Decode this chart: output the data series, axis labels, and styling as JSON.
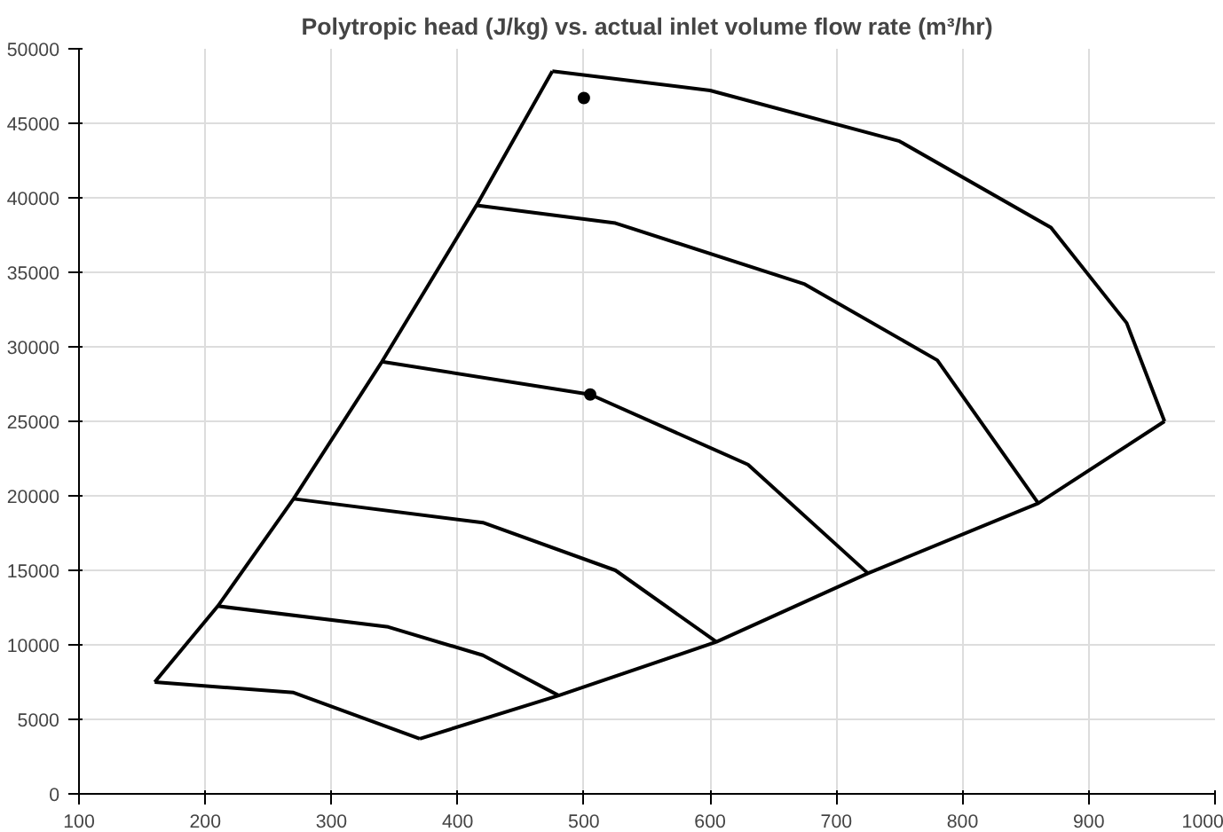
{
  "chart_data": {
    "type": "line",
    "title": "Polytropic head (J/kg) vs. actual inlet volume flow rate (m³/hr)",
    "xlim": [
      100,
      1000
    ],
    "xticks": [
      100,
      200,
      300,
      400,
      500,
      600,
      700,
      800,
      900,
      1000
    ],
    "ylim": [
      0,
      50000
    ],
    "yticks": [
      0,
      5000,
      10000,
      15000,
      20000,
      25000,
      30000,
      35000,
      40000,
      45000,
      50000
    ],
    "grid": true,
    "marker": "none",
    "line_style": "solid",
    "series": [
      {
        "color": "#000000",
        "x": [
          160,
          270,
          370
        ],
        "values": [
          7500,
          6800,
          3700
        ]
      },
      {
        "color": "#000000",
        "x": [
          210,
          345,
          420,
          480
        ],
        "values": [
          12600,
          11200,
          9300,
          6600
        ]
      },
      {
        "color": "#000000",
        "x": [
          270,
          420,
          525,
          605
        ],
        "values": [
          19800,
          18200,
          15000,
          10200
        ]
      },
      {
        "color": "#000000",
        "x": [
          340,
          505,
          630,
          725
        ],
        "values": [
          29000,
          26800,
          22100,
          14800
        ]
      },
      {
        "color": "#000000",
        "x": [
          415,
          525,
          675,
          780,
          860
        ],
        "values": [
          39500,
          38300,
          34200,
          29100,
          19500
        ]
      },
      {
        "color": "#000000",
        "x": [
          475,
          600,
          750,
          870,
          930,
          960
        ],
        "values": [
          48500,
          47200,
          43800,
          38000,
          31600,
          25000
        ]
      },
      {
        "color": "#000000",
        "x": [
          160,
          210,
          270,
          340,
          415,
          475
        ],
        "values": [
          7500,
          12600,
          19800,
          29000,
          39500,
          48500
        ]
      },
      {
        "color": "#000000",
        "x": [
          370,
          480,
          605,
          725,
          860,
          960
        ],
        "values": [
          3700,
          6600,
          10200,
          14800,
          19500,
          25000
        ]
      },
      {
        "type": "scatter",
        "marker": "circle",
        "color": "#000000",
        "x": [
          500,
          505
        ],
        "values": [
          46700,
          26800
        ]
      }
    ]
  }
}
